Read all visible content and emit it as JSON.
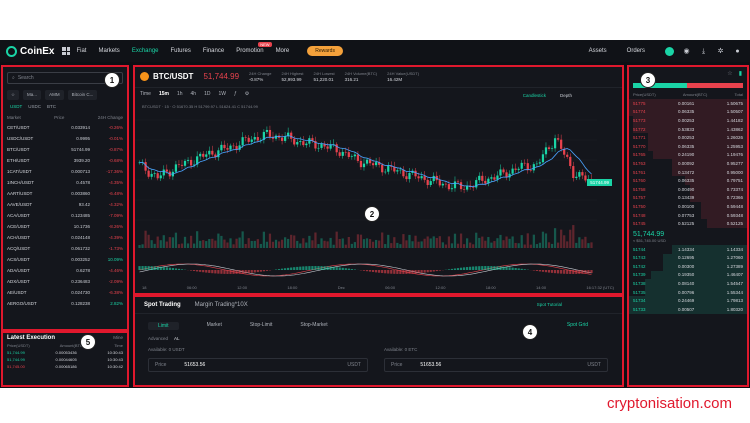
{
  "nav": {
    "brand": "CoinEx",
    "items": [
      "Fiat",
      "Markets",
      "Exchange",
      "Futures",
      "Finance",
      "Promotion",
      "More"
    ],
    "promotion_badge": "NEW",
    "reward_label": "Rewards",
    "right_items": [
      "Assets",
      "Orders"
    ]
  },
  "markets": {
    "search_placeholder": "Search",
    "tabs": [
      "☆",
      "Ma...",
      "AMM",
      "Bitcoin C..."
    ],
    "quote_tabs": [
      "USDT",
      "USDC",
      "BTC"
    ],
    "head": {
      "market": "Market",
      "price": "Price",
      "change": "24H Change"
    },
    "rows": [
      {
        "pair": "CET/USDT",
        "price": "0.033914",
        "change": "-0.26%"
      },
      {
        "pair": "USDC/USDT",
        "price": "0.9995",
        "change": "-0.01%"
      },
      {
        "pair": "BTC/USDT",
        "price": "51744.99",
        "change": "-0.87%"
      },
      {
        "pair": "ETH/USDT",
        "price": "3939.20",
        "change": "-0.68%"
      },
      {
        "pair": "1CAT/USDT",
        "price": "0.000713",
        "change": "-17.36%"
      },
      {
        "pair": "1INCH/USDT",
        "price": "0.4578",
        "change": "-4.35%"
      },
      {
        "pair": "AART/USDT",
        "price": "0.003860",
        "change": "-6.48%"
      },
      {
        "pair": "AAVE/USDT",
        "price": "93.42",
        "change": "-4.32%"
      },
      {
        "pair": "ACA/USDT",
        "price": "0.123485",
        "change": "-7.09%"
      },
      {
        "pair": "ACE/USDT",
        "price": "10.1736",
        "change": "-8.26%"
      },
      {
        "pair": "ACH/USDT",
        "price": "0.024148",
        "change": "-4.39%"
      },
      {
        "pair": "ACQ/USDT",
        "price": "0.061732",
        "change": "-1.73%"
      },
      {
        "pair": "ACS/USDT",
        "price": "0.003252",
        "change": "10.09%"
      },
      {
        "pair": "ADA/USDT",
        "price": "0.6278",
        "change": "-4.46%"
      },
      {
        "pair": "ADX/USDT",
        "price": "0.236483",
        "change": "-2.09%"
      },
      {
        "pair": "AE/USDT",
        "price": "0.024730",
        "change": "-6.38%"
      },
      {
        "pair": "AERGO/USDT",
        "price": "0.128238",
        "change": "2.82%"
      }
    ]
  },
  "latest_execution": {
    "title": "Latest Execution",
    "mine_label": "Mine",
    "head": [
      "Price(USDT)",
      "Amount(BTC)",
      "Time"
    ],
    "rows": [
      {
        "price": "51,744.99",
        "amount": "0.00053436",
        "time": "10:30:43"
      },
      {
        "price": "51,744.99",
        "amount": "0.00044605",
        "time": "10:30:43"
      },
      {
        "price": "51,745.00",
        "amount": "0.00065186",
        "time": "10:30:42"
      }
    ]
  },
  "chart": {
    "pair": "BTC/USDT",
    "price": "51,744.99",
    "stats": [
      {
        "label": "24H Change",
        "value": "-0.87%"
      },
      {
        "label": "24H Highest",
        "value": "52,993.99"
      },
      {
        "label": "24H Lowest",
        "value": "51,220.01"
      },
      {
        "label": "24H Volume(BTC)",
        "value": "316.21"
      },
      {
        "label": "24H Value(USDT)",
        "value": "16.42M"
      }
    ],
    "intervals": [
      "Time",
      "15m",
      "1h",
      "4h",
      "1D",
      "1W"
    ],
    "active_interval": "15m",
    "views": [
      "Candlestick",
      "Depth"
    ],
    "legend": "BTCUSDT · 15 · O 51670.35 H 51799.97 L 51624.41 C 51744.99",
    "current_price_tag": "51744.99",
    "utc_label": "16:17:32 (UTC)",
    "footer_times": [
      "18",
      "06:00",
      "12:00",
      "18:00",
      "Dec",
      "06:00",
      "12:00",
      "18:00",
      "14:00"
    ]
  },
  "chart_data": {
    "type": "line",
    "series": [
      {
        "values": [
          52100,
          51850,
          52050,
          52200,
          52350,
          52450,
          52600,
          52700,
          52650,
          52550,
          52500,
          52400,
          52200,
          52100,
          52000,
          51900,
          51800,
          51700,
          51650,
          51800,
          51900,
          52050,
          52100,
          52650,
          51950,
          51744.99
        ]
      }
    ],
    "ylim": [
      51000,
      53000
    ]
  },
  "order_book": {
    "head": [
      "Price(USDT)",
      "Amount(BTC)",
      "Total"
    ],
    "asks": [
      {
        "price": "51775",
        "amount": "0.00161",
        "total": "1.50675"
      },
      {
        "price": "51774",
        "amount": "0.06335",
        "total": "1.50507"
      },
      {
        "price": "51773",
        "amount": "0.00253",
        "total": "1.44182"
      },
      {
        "price": "51772",
        "amount": "0.53833",
        "total": "1.43862"
      },
      {
        "price": "51771",
        "amount": "0.00253",
        "total": "1.26026"
      },
      {
        "price": "51770",
        "amount": "0.06335",
        "total": "1.25953"
      },
      {
        "price": "51765",
        "amount": "0.24190",
        "total": "1.19476"
      },
      {
        "price": "51763",
        "amount": "0.00092",
        "total": "0.95277"
      },
      {
        "price": "51761",
        "amount": "0.13472",
        "total": "0.95000"
      },
      {
        "price": "51760",
        "amount": "0.06335",
        "total": "0.79751"
      },
      {
        "price": "51758",
        "amount": "0.00490",
        "total": "0.73374"
      },
      {
        "price": "51757",
        "amount": "0.13439",
        "total": "0.72366"
      },
      {
        "price": "51750",
        "amount": "0.00100",
        "total": "0.59448"
      },
      {
        "price": "51748",
        "amount": "0.07753",
        "total": "0.59348"
      },
      {
        "price": "51745",
        "amount": "0.52125",
        "total": "0.52125"
      }
    ],
    "last_price": "51,744.99",
    "last_fiat": "≈ $51,745.00 USD",
    "bids": [
      {
        "price": "51744",
        "amount": "1.14334",
        "total": "1.14334"
      },
      {
        "price": "51743",
        "amount": "0.12695",
        "total": "1.27060"
      },
      {
        "price": "51742",
        "amount": "0.00300",
        "total": "1.27389"
      },
      {
        "price": "51739",
        "amount": "0.19350",
        "total": "1.46407"
      },
      {
        "price": "51738",
        "amount": "0.08140",
        "total": "1.54547"
      },
      {
        "price": "51735",
        "amount": "0.00796",
        "total": "1.55344"
      },
      {
        "price": "51734",
        "amount": "0.24469",
        "total": "1.79813"
      },
      {
        "price": "51733",
        "amount": "0.00507",
        "total": "1.80320"
      }
    ]
  },
  "trading": {
    "tabs": [
      "Spot Trading",
      "Margin Trading*10X"
    ],
    "tutorial": "Spot Tutorial",
    "order_types": [
      "Limit",
      "Market",
      "Stop-Limit",
      "Stop-Market"
    ],
    "spot_grid": "Spot Grid",
    "advanced_label": "Advanced",
    "advanced_value": "AL",
    "available_left": "Available: 0 USDT",
    "available_right": "Available: 0 ETC",
    "price_label": "Price",
    "price_value": "51653.56",
    "price_unit": "USDT"
  },
  "annotations": [
    "1",
    "2",
    "3",
    "4",
    "5"
  ],
  "watermark": "cryptonisation.com",
  "colors": {
    "up": "#1ad4a6",
    "down": "#e8424d",
    "accent": "#1ad4a6",
    "highlight_box": "#e0182d"
  }
}
